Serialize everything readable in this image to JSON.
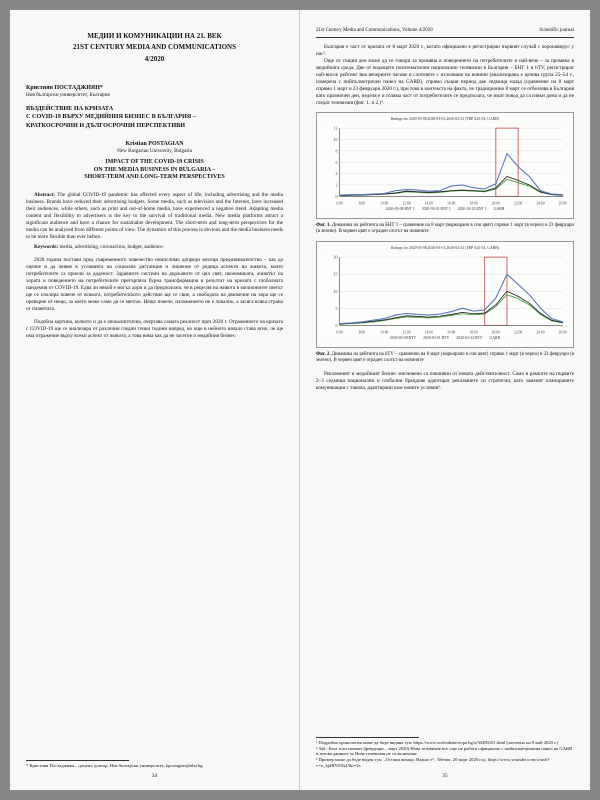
{
  "left": {
    "header_running": "",
    "journal_bg": "МЕДИИ И КОМУНИКАЦИИ НА 21. ВЕК",
    "journal_en": "21ST CENTURY MEDIA AND COMMUNICATIONS",
    "issue": "4/2020",
    "author_bg": "Кристиян ПОСТАДЖИЯН*",
    "affil_bg": "Нов български университет, България",
    "title_bg_1": "ВЪЗДЕЙСТВИЕ НА КРИЗАТА",
    "title_bg_2": "С COVID-19 ВЪРХУ МЕДИЙНИЯ БИЗНЕС В БЪЛГАРИЯ –",
    "title_bg_3": "КРАТКОСРОЧНИ И ДЪЛГОСРОЧНИ ПЕРСПЕКТИВИ",
    "author_en": "Kristian POSTAGIAN",
    "affil_en": "New Bulgarian University, Bulgaria",
    "title_en_1": "IMPACT OF THE COVID-19 CRISIS",
    "title_en_2": "ON THE MEDIA BUSINESS IN BULGARIA –",
    "title_en_3": "SHORT-TERM AND LONG-TERM PERSPECTIVES",
    "abstract_label": "Abstract:",
    "abstract": "The global COVID-19 pandemic has affected every aspect of life, including advertising and the media business. Brands have reduced their advertising budgets. Some media, such as television and the Internet, have increased their audiences, while others, such as print and out-of-home media, have experienced a negative trend. Adapting media content and flexibility to advertisers is the key to the survival of traditional media. New media platforms attract a significant audience and have a chance for sustainable development. The short-term and long-term perspectives for the media can be analyzed from different points of view. The dynamics of this process is obvious and the media business needs to be more flexible than ever before.",
    "keywords_label": "Keywords:",
    "keywords": "media, advertising, coronavirus, budget, audience.",
    "para1": "2020 година постави пред съвременното човечество немислимо допреди месеци предизвикателство – как да оцелее и да живее в условията на социална дистанция и лишение от редица аспекти на живота, които потребителите са приели за даденост. Здравните системи на държавите от цял свят, икономиката, животът на хората и поведението на потребителите претърпяха бурна трансформация в резултат на кризата с глобалната пандемия от COVID-19. Едва ли някой е могъл дори и да предположи, че в рецесия на живота в милионните светът ще се изолира повече от всякога, потребителското действие ще се свие, а свободата на движение на хора ще се превърне от нещо, за което може само да се мечтае. Нещо повече, изложението не е локално, а засяга всяка страна от планетата.",
    "para2": "Подобна картина, колкото и да е апокалиптична, очертава самата реалност през 2020 г. Отражението на кризата с COVID-19 ще се анализира от различни гледни точки години напред, но още в нейното начало става ясно, че ще има отражение върху всеки аспект от живота, а това няма как да не засегне и медийния бизнес.",
    "footnote_marker": "*",
    "footnote": "Кристиян Постаджиян – доцент, доктор, Нов български университет, kpostagian@nbu.bg",
    "page_num": "34"
  },
  "right": {
    "header_left": "21st Century Media and Communications, Volume 4/2020",
    "header_right": "Scientific journal",
    "para1": "България е част от кризата от 8 март 2020 г., когато официално е регистриран първият случай с коронавирус у нас¹.",
    "para2": "Още от същия ден може да се говори за промяна в поведението на потребителите и най-вече – за промяна в медийната среда. Две от водещите позитематични национални телевизии в България – БНТ 1 и bTV, регистрират най-висок рейтинг във вечерните часове и слотовете с излъчване на новини (анализирана е целева група 25–54 г., измерена с пийпълметричен панел на GARB), спрямо същия период две седмици назад (сравнение на 8 март спрямо 1 март и 23 февруари 2020 г.), при това в контекста на факта, че традиционно 8 март се отбелязва в България като празничен ден, неделя е и голяма част от потребителите се предполага, че имат повод да са извън дома и да не гледат телевизия (фиг. 1. и 2.)².",
    "chart1": {
      "caption_label": "Фиг. 1.",
      "caption": "Динамика на рейтинга на БНТ 1 – сравнение на 8 март (маркирано в син цвят) спрямо 1 март (в черно) и 23 февруари (в зелено). В червен цвят е ограден слотът на новините",
      "legend_title": "Ratings for 2020-03-08,2020-03-01,2020-02-23 (TRP A25-54, GARB)",
      "legend": [
        "2020-03-08 BNT 1",
        "2020-03-01 BNT 1",
        "2020-02-23 BNT 1",
        "GARB"
      ],
      "colors": {
        "series1": "#5b7cc4",
        "series2": "#1a1a1a",
        "series3": "#3a9a3a",
        "highlight": "#c94a4a",
        "grid": "#d8d8d8",
        "axis": "#444444",
        "bg": "#fdfdfb"
      },
      "xlim": [
        6,
        26
      ],
      "ylim": [
        0,
        12
      ],
      "ytick_step": 2,
      "series1": [
        0.2,
        0.3,
        0.3,
        0.4,
        0.5,
        1.0,
        1.2,
        1.1,
        0.9,
        1.0,
        1.8,
        2.0,
        1.5,
        1.3,
        2.2,
        7.5,
        5.2,
        3.5,
        1.0,
        0.4,
        0.3
      ],
      "series2": [
        0.1,
        0.2,
        0.2,
        0.3,
        0.4,
        0.6,
        0.9,
        0.8,
        0.7,
        0.8,
        1.0,
        1.1,
        1.0,
        0.9,
        1.5,
        3.5,
        2.8,
        2.0,
        0.8,
        0.3,
        0.2
      ],
      "series3": [
        0.1,
        0.2,
        0.3,
        0.3,
        0.4,
        0.5,
        0.8,
        0.7,
        0.6,
        0.7,
        0.9,
        1.0,
        0.9,
        0.8,
        1.3,
        3.0,
        2.4,
        1.8,
        0.7,
        0.3,
        0.2
      ],
      "highlight_x": [
        20,
        22
      ]
    },
    "chart2": {
      "caption_label": "Фиг. 2.",
      "caption": "Динамика на рейтинга на bTV – сравнение на 8 март (маркирано в син цвят) спрямо 1 март (в черно) и 23 февруари (в зелено). В червен цвят е ограден слотът на новините",
      "legend_title": "Ratings for 2020-03-08,2020-03-01,2020-02-23 (TRP A25-54, GARB)",
      "legend": [
        "2020-03-08 BTV",
        "2020-03-01 BTV",
        "2020-02-23 BTV",
        "GARB"
      ],
      "colors": {
        "series1": "#5b7cc4",
        "series2": "#1a1a1a",
        "series3": "#3a9a3a",
        "highlight": "#c94a4a",
        "grid": "#d8d8d8",
        "axis": "#444444",
        "bg": "#fdfdfb"
      },
      "xlim": [
        6,
        26
      ],
      "ylim": [
        0,
        20
      ],
      "ytick_step": 5,
      "series1": [
        0.5,
        0.7,
        1.0,
        1.5,
        2.0,
        3.0,
        3.5,
        3.2,
        3.0,
        3.3,
        4.0,
        5.0,
        4.2,
        4.5,
        8.0,
        15.0,
        12.0,
        9.0,
        5.0,
        2.0,
        1.0
      ],
      "series2": [
        0.4,
        0.6,
        0.8,
        1.2,
        1.6,
        2.2,
        2.8,
        2.6,
        2.4,
        2.7,
        3.2,
        3.8,
        3.4,
        3.6,
        6.0,
        10.0,
        8.5,
        6.5,
        3.5,
        1.5,
        0.8
      ],
      "series3": [
        0.3,
        0.5,
        0.7,
        1.0,
        1.4,
        2.0,
        2.5,
        2.3,
        2.2,
        2.4,
        2.9,
        3.4,
        3.1,
        3.3,
        5.5,
        9.0,
        7.8,
        6.0,
        3.2,
        1.3,
        0.7
      ],
      "highlight_x": [
        19,
        21
      ]
    },
    "para3": "Рекламният и медийният бизнес мигновено са повлияни от новата действителност. Само в рамките на първите 2–3 седмици национални и глобални брандове адаптират рекламните си стратегии, като заменят планираните комуникации с такива, адаптирани към новите условия³.",
    "footnotes": [
      "¹ Подробна хронология може да бъде видяна тук: https://www.svobodnaevropa.bg/a/30490101.html (засечено на 9 май 2020 г.)",
      "² Заб.: Към този момент (февруари – март 2020) Нова телевизия все още не работи официално с пийпълметричния панел на GARB и затова данните за Нова телевизия не са включени.",
      "³ Пример може да бъде виден тук: „Остани вкъщи. Важно е“, Telenor, 20 март 2020 год. https://www.youtube.com/watch?v=o_kjdRN5XkU&t=2s"
    ],
    "page_num": "35"
  }
}
